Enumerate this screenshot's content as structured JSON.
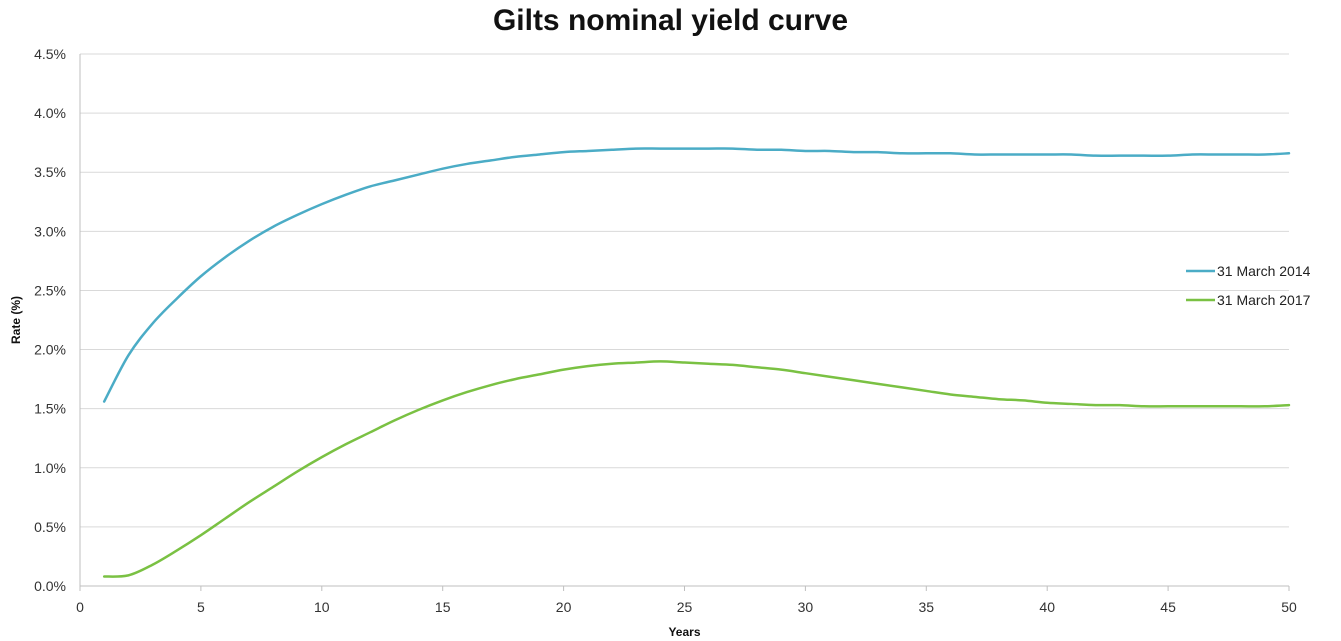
{
  "chart_data": {
    "type": "line",
    "title": "Gilts nominal yield curve",
    "xlabel": "Years",
    "ylabel": "Rate (%)",
    "xlim": [
      0,
      50
    ],
    "ylim": [
      0,
      4.5
    ],
    "x_ticks": [
      0,
      5,
      10,
      15,
      20,
      25,
      30,
      35,
      40,
      45,
      50
    ],
    "y_ticks": [
      "0.0%",
      "0.5%",
      "1.0%",
      "1.5%",
      "2.0%",
      "2.5%",
      "3.0%",
      "3.5%",
      "4.0%",
      "4.5%"
    ],
    "grid": "horizontal",
    "legend_position": "right",
    "x": [
      1,
      2,
      3,
      4,
      5,
      6,
      7,
      8,
      9,
      10,
      11,
      12,
      13,
      14,
      15,
      16,
      17,
      18,
      19,
      20,
      21,
      22,
      23,
      24,
      25,
      26,
      27,
      28,
      29,
      30,
      31,
      32,
      33,
      34,
      35,
      36,
      37,
      38,
      39,
      40,
      41,
      42,
      43,
      44,
      45,
      46,
      47,
      48,
      49,
      50
    ],
    "series": [
      {
        "name": "31 March 2014",
        "color": "#4bacc6",
        "values": [
          1.56,
          1.95,
          2.22,
          2.43,
          2.62,
          2.78,
          2.92,
          3.04,
          3.14,
          3.23,
          3.31,
          3.38,
          3.43,
          3.48,
          3.53,
          3.57,
          3.6,
          3.63,
          3.65,
          3.67,
          3.68,
          3.69,
          3.7,
          3.7,
          3.7,
          3.7,
          3.7,
          3.69,
          3.69,
          3.68,
          3.68,
          3.67,
          3.67,
          3.66,
          3.66,
          3.66,
          3.65,
          3.65,
          3.65,
          3.65,
          3.65,
          3.64,
          3.64,
          3.64,
          3.64,
          3.65,
          3.65,
          3.65,
          3.65,
          3.66
        ]
      },
      {
        "name": "31 March 2017",
        "color": "#7ac143",
        "values": [
          0.08,
          0.09,
          0.18,
          0.3,
          0.43,
          0.57,
          0.71,
          0.84,
          0.97,
          1.09,
          1.2,
          1.3,
          1.4,
          1.49,
          1.57,
          1.64,
          1.7,
          1.75,
          1.79,
          1.83,
          1.86,
          1.88,
          1.89,
          1.9,
          1.89,
          1.88,
          1.87,
          1.85,
          1.83,
          1.8,
          1.77,
          1.74,
          1.71,
          1.68,
          1.65,
          1.62,
          1.6,
          1.58,
          1.57,
          1.55,
          1.54,
          1.53,
          1.53,
          1.52,
          1.52,
          1.52,
          1.52,
          1.52,
          1.52,
          1.53
        ]
      }
    ]
  }
}
